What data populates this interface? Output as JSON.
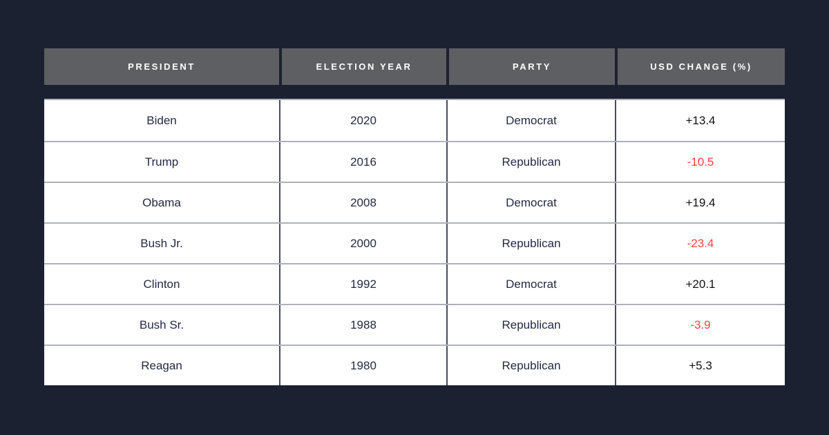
{
  "colors": {
    "background": "#1c2132",
    "header_bg": "#5e5f63",
    "header_text": "#ffffff",
    "row_bg": "#ffffff",
    "cell_text": "#232942",
    "positive_text": "#111111",
    "negative_text": "#fa4242",
    "row_divider": "#aeb0ba",
    "column_divider": "#474b5c"
  },
  "table": {
    "headers": [
      "PRESIDENT",
      "ELECTION YEAR",
      "PARTY",
      "USD CHANGE (%)"
    ],
    "rows": [
      {
        "president": "Biden",
        "election_year": "2020",
        "party": "Democrat",
        "usd_change": "+13.4",
        "negative": false
      },
      {
        "president": "Trump",
        "election_year": "2016",
        "party": "Republican",
        "usd_change": "-10.5",
        "negative": true
      },
      {
        "president": "Obama",
        "election_year": "2008",
        "party": "Democrat",
        "usd_change": "+19.4",
        "negative": false
      },
      {
        "president": "Bush Jr.",
        "election_year": "2000",
        "party": "Republican",
        "usd_change": "-23.4",
        "negative": true
      },
      {
        "president": "Clinton",
        "election_year": "1992",
        "party": "Democrat",
        "usd_change": "+20.1",
        "negative": false
      },
      {
        "president": "Bush Sr.",
        "election_year": "1988",
        "party": "Republican",
        "usd_change": "-3.9",
        "negative": true
      },
      {
        "president": "Reagan",
        "election_year": "1980",
        "party": "Republican",
        "usd_change": "+5.3",
        "negative": false
      }
    ]
  },
  "chart_data": {
    "type": "table",
    "columns": [
      "President",
      "Election Year",
      "Party",
      "USD Change (%)"
    ],
    "rows": [
      [
        "Biden",
        2020,
        "Democrat",
        13.4
      ],
      [
        "Trump",
        2016,
        "Republican",
        -10.5
      ],
      [
        "Obama",
        2008,
        "Democrat",
        19.4
      ],
      [
        "Bush Jr.",
        2000,
        "Republican",
        -23.4
      ],
      [
        "Clinton",
        1992,
        "Democrat",
        20.1
      ],
      [
        "Bush Sr.",
        1988,
        "Republican",
        -3.9
      ],
      [
        "Reagan",
        1980,
        "Republican",
        5.3
      ]
    ],
    "notes": "USD change (%) values shown red when negative, dark when positive"
  }
}
